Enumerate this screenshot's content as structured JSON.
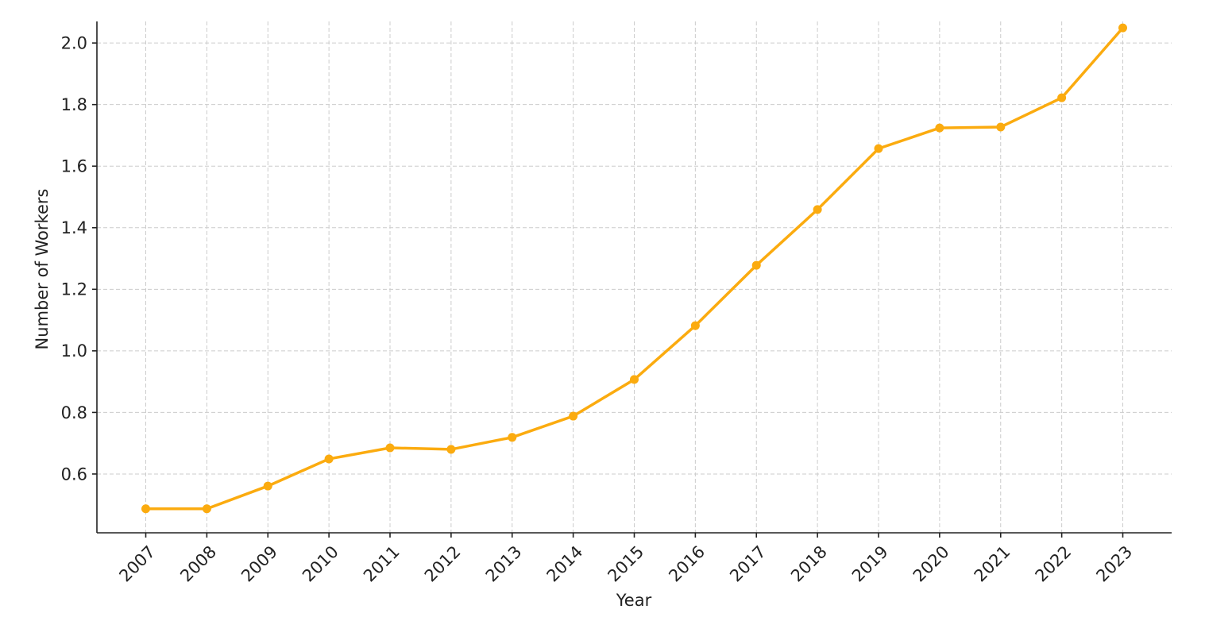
{
  "chart_data": {
    "type": "line",
    "x_label": "Year",
    "y_label": "Number of Workers",
    "x": [
      2007,
      2008,
      2009,
      2010,
      2011,
      2012,
      2013,
      2014,
      2015,
      2016,
      2017,
      2018,
      2019,
      2020,
      2021,
      2022,
      2023
    ],
    "series": [
      {
        "color": "#fbab0f",
        "values": [
          0.487,
          0.487,
          0.561,
          0.649,
          0.685,
          0.68,
          0.719,
          0.788,
          0.907,
          1.082,
          1.278,
          1.459,
          1.657,
          1.724,
          1.727,
          1.822,
          2.049
        ]
      }
    ],
    "xlim": [
      2006.2,
      2023.8
    ],
    "xticks": [
      2007,
      2008,
      2009,
      2010,
      2011,
      2012,
      2013,
      2014,
      2015,
      2016,
      2017,
      2018,
      2019,
      2020,
      2021,
      2022,
      2023
    ],
    "ylim": [
      0.409,
      2.07
    ],
    "yticks": [
      0.6,
      0.8,
      {
        "value": 1,
        "label": "1.0"
      },
      1.2,
      1.4,
      1.6,
      1.8,
      {
        "value": 2,
        "label": "2.0"
      }
    ],
    "grid": true
  }
}
